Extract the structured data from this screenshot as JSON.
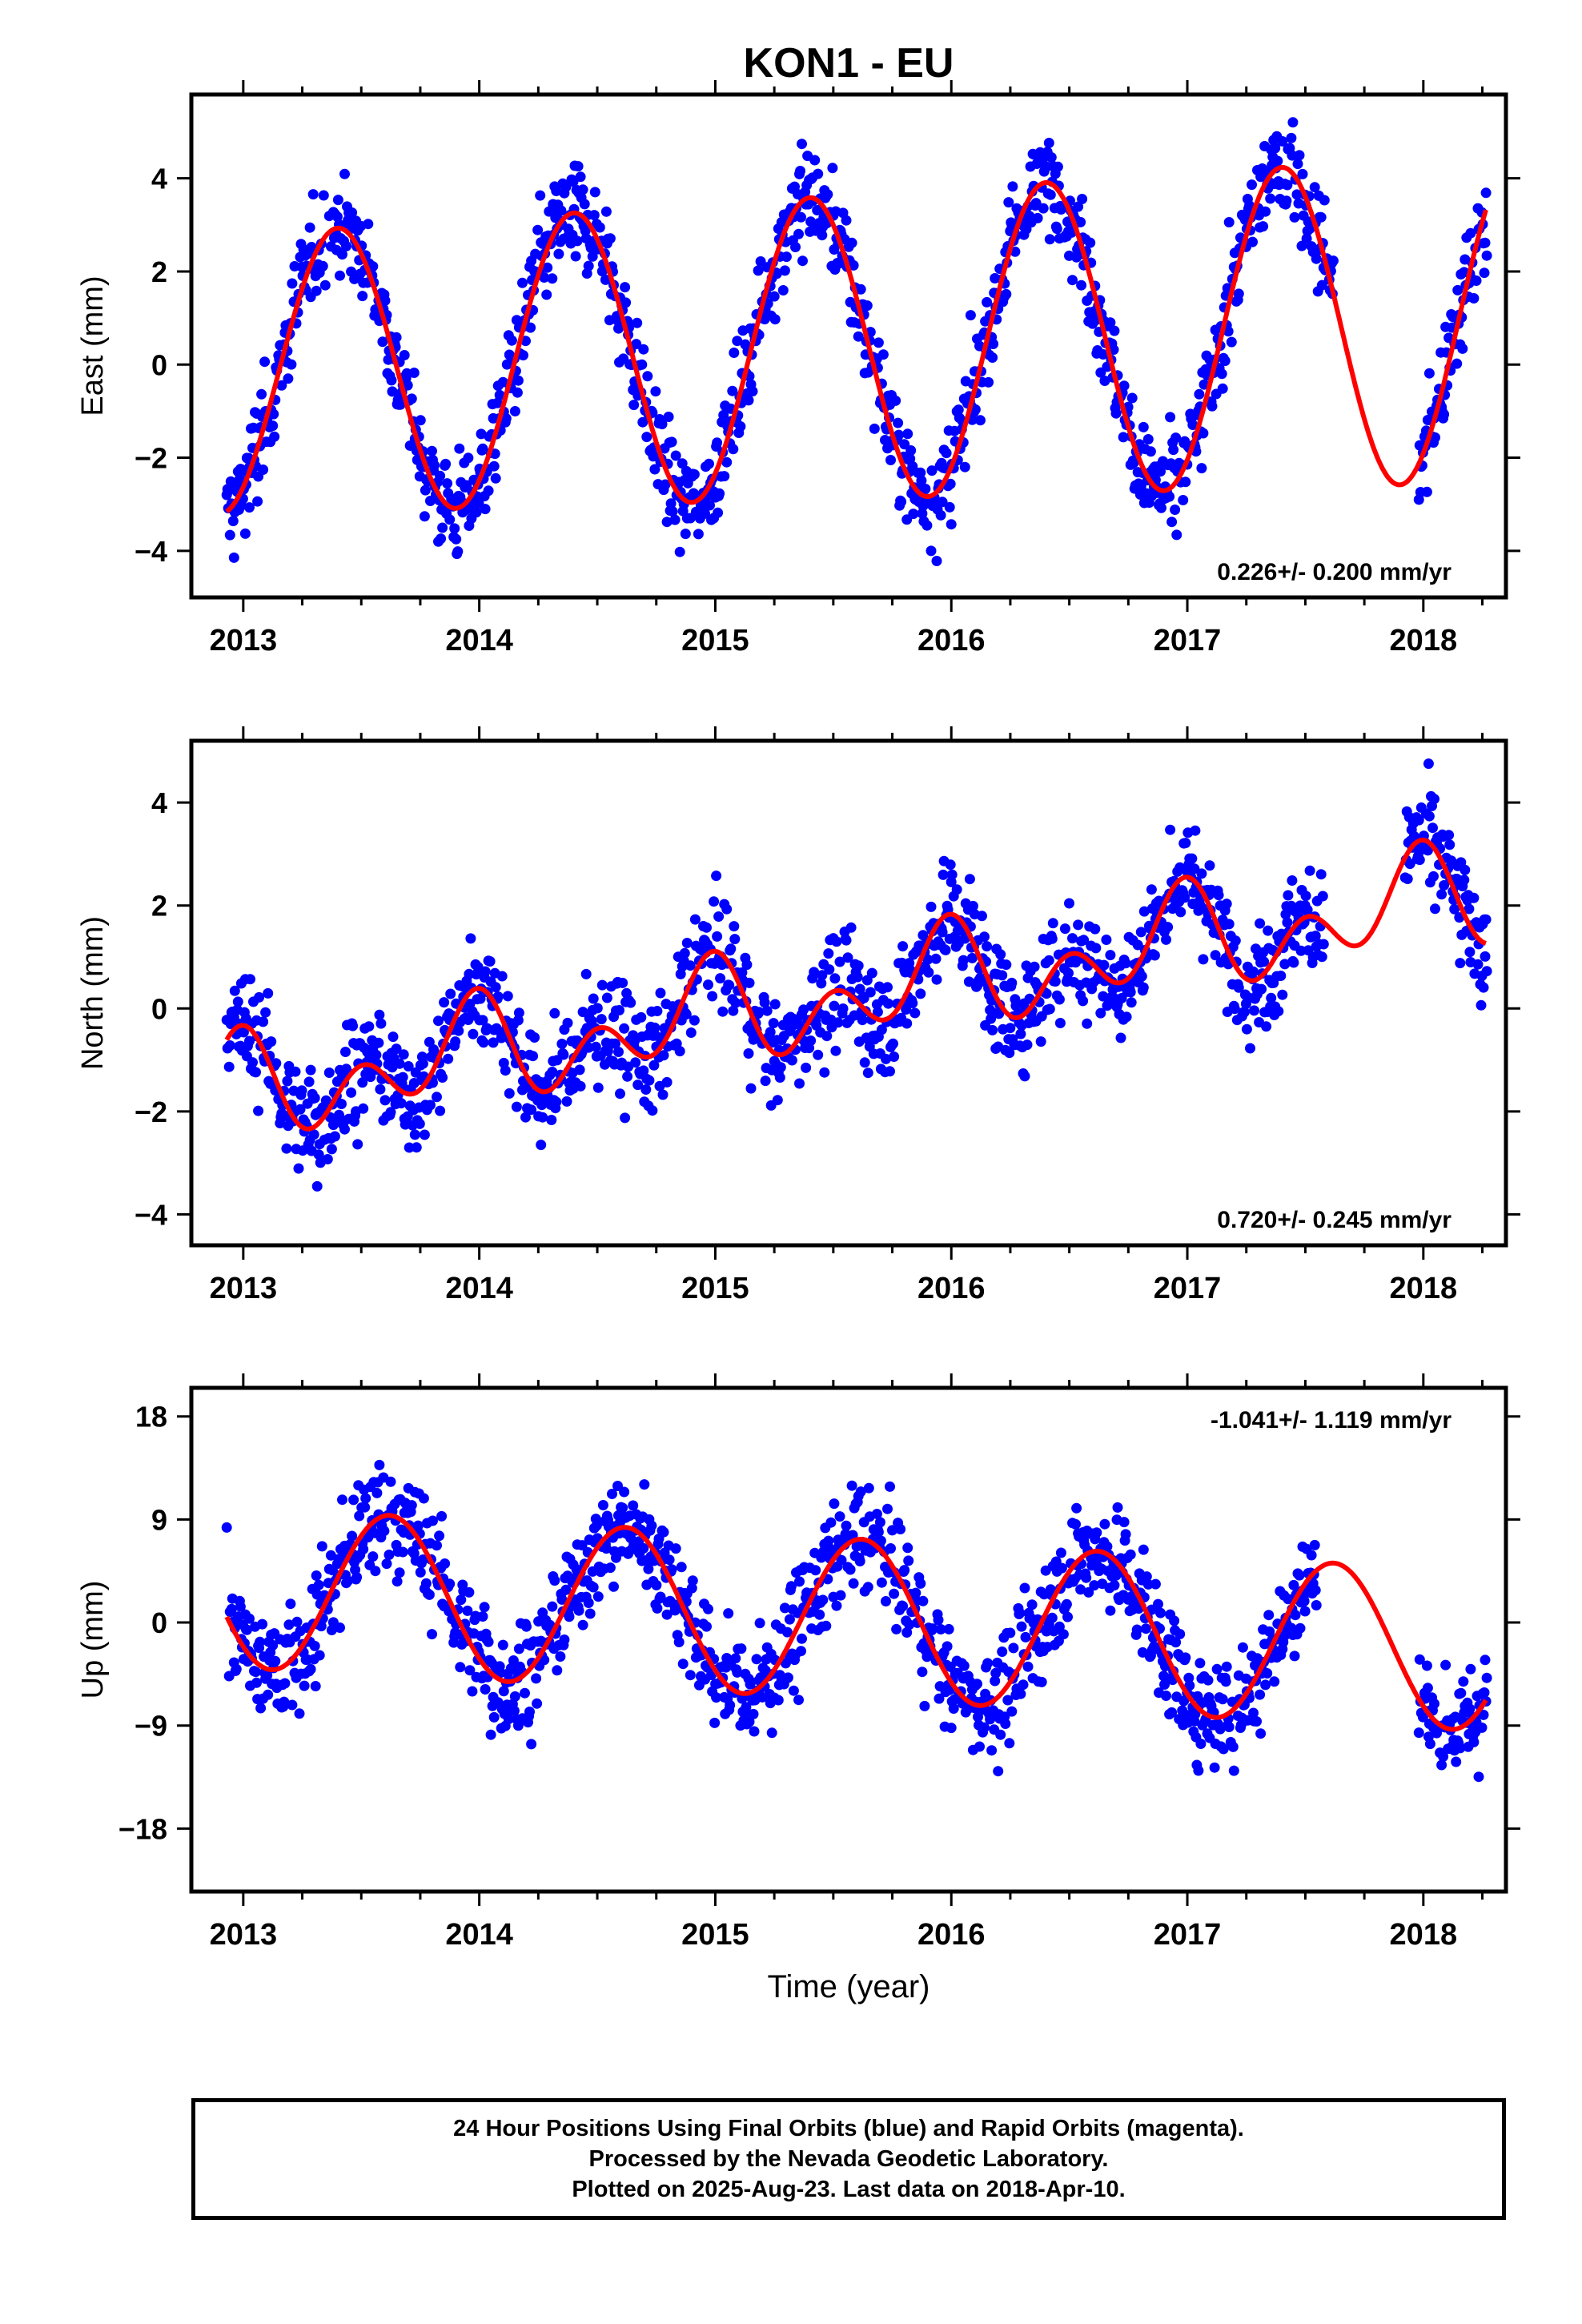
{
  "title": "KON1 - EU",
  "xlabel": "Time (year)",
  "colors": {
    "points": "#0000ff",
    "fit": "#ff0000",
    "axes": "#000000"
  },
  "caption": {
    "line1": "24 Hour Positions Using Final Orbits (blue) and Rapid Orbits (magenta).",
    "line2": "Processed by the Nevada Geodetic Laboratory.",
    "line3": "Plotted on 2025-Aug-23. Last data on 2018-Apr-10."
  },
  "chart_data": [
    {
      "type": "scatter",
      "ylabel": "East (mm)",
      "xlim": [
        2012.78,
        2018.35
      ],
      "ylim": [
        -5.0,
        5.8
      ],
      "xticks": [
        2013,
        2014,
        2015,
        2016,
        2017,
        2018
      ],
      "yticks": [
        -4,
        -2,
        0,
        2,
        4
      ],
      "ytick_labels": [
        "−4",
        "−2",
        "0",
        "2",
        "4"
      ],
      "rate_label": "0.226+/- 0.200 mm/yr",
      "rate_position": "bottom-right",
      "fit_model": {
        "rate": 0.226,
        "offset": -0.2,
        "amp_annual": 3.0,
        "phase_peak": 2013.4,
        "amp_semiannual": 0.0,
        "amp_trend_growth": 0.1
      },
      "gaps": [
        [
          2017.62,
          2017.98
        ]
      ],
      "noise": 1.0,
      "data_end": 2018.27
    },
    {
      "type": "scatter",
      "ylabel": "North (mm)",
      "xlim": [
        2012.78,
        2018.35
      ],
      "ylim": [
        -4.6,
        5.2
      ],
      "xticks": [
        2013,
        2014,
        2015,
        2016,
        2017,
        2018
      ],
      "yticks": [
        -4,
        -2,
        0,
        2,
        4
      ],
      "ytick_labels": [
        "−4",
        "−2",
        "0",
        "2",
        "4"
      ],
      "rate_label": "0.720+/- 0.245 mm/yr",
      "rate_position": "bottom-right",
      "fit_model": {
        "rate": 0.72,
        "offset": -1.6,
        "amp_annual": 0.6,
        "phase_peak": 2013.95,
        "amp_semiannual": 0.7,
        "amp_trend_growth": 0.0
      },
      "gaps": [
        [
          2017.58,
          2017.92
        ]
      ],
      "noise": 1.0,
      "data_end": 2018.27
    },
    {
      "type": "scatter",
      "ylabel": "Up (mm)",
      "xlim": [
        2012.78,
        2018.35
      ],
      "ylim": [
        -23.5,
        20.5
      ],
      "xticks": [
        2013,
        2014,
        2015,
        2016,
        2017,
        2018
      ],
      "yticks": [
        -18,
        -9,
        0,
        9,
        18
      ],
      "ytick_labels": [
        "−18",
        "−9",
        "0",
        "9",
        "18"
      ],
      "rate_label": "-1.041+/- 1.119 mm/yr",
      "rate_position": "top-right",
      "fit_model": {
        "rate": -1.041,
        "offset": 3.0,
        "amp_annual": 7.0,
        "phase_peak": 2013.62,
        "amp_semiannual": 0.0,
        "amp_trend_growth": 0.0
      },
      "gaps": [
        [
          2017.55,
          2017.98
        ]
      ],
      "noise": 4.5,
      "data_end": 2018.27
    }
  ]
}
